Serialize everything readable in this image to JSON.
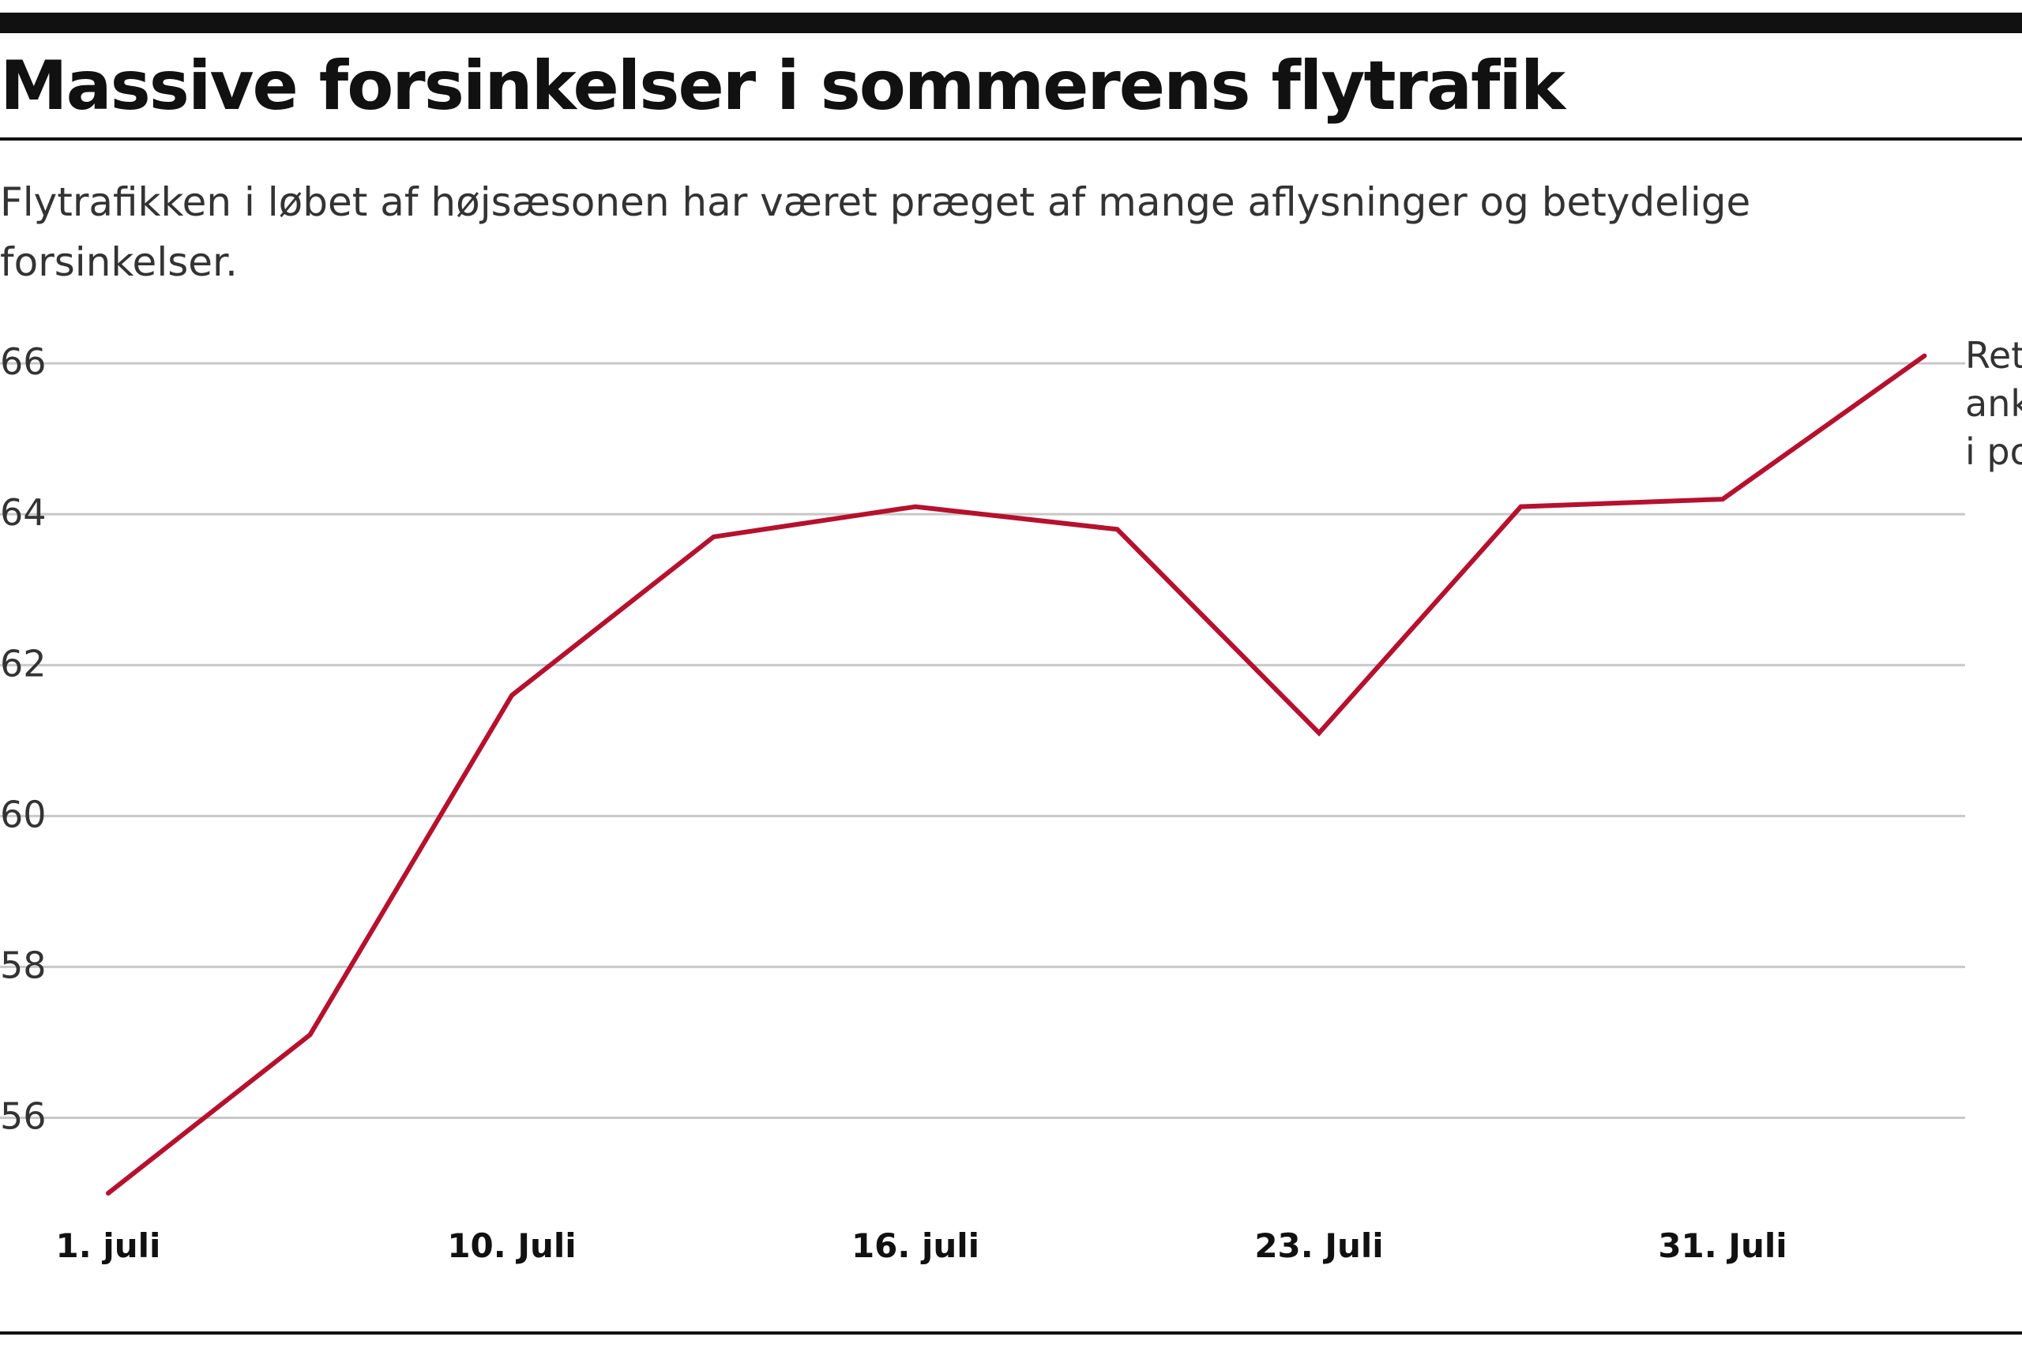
{
  "chart_data": {
    "type": "line",
    "title": "Massive forsinkelser i sommerens flytrafik",
    "subtitle": "Flytrafikken i løbet af højsæsonen har været præget af mange aflysninger og betydelige forsinkelser.",
    "xlabel": "",
    "ylabel": "",
    "x": [
      "1. juli",
      "",
      "10. Juli",
      "",
      "16. juli",
      "",
      "23. Juli",
      "",
      "31. Juli",
      ""
    ],
    "x_tick_labels": [
      "1. juli",
      "10. Juli",
      "16. juli",
      "23. Juli",
      "31. Juli"
    ],
    "y_ticks": [
      56,
      58,
      60,
      62,
      64,
      66
    ],
    "ylim": [
      55,
      66.2
    ],
    "grid": true,
    "series": [
      {
        "name": "",
        "values": [
          55.0,
          57.1,
          61.6,
          63.7,
          64.1,
          63.8,
          61.1,
          64.1,
          64.2,
          66.1
        ]
      }
    ],
    "annotation_lines": [
      "Ret",
      "ank",
      "i po"
    ],
    "colors": {
      "line": "#b5112e",
      "grid": "#c8c8c8",
      "text": "#111111",
      "axis_text": "#333333"
    }
  }
}
